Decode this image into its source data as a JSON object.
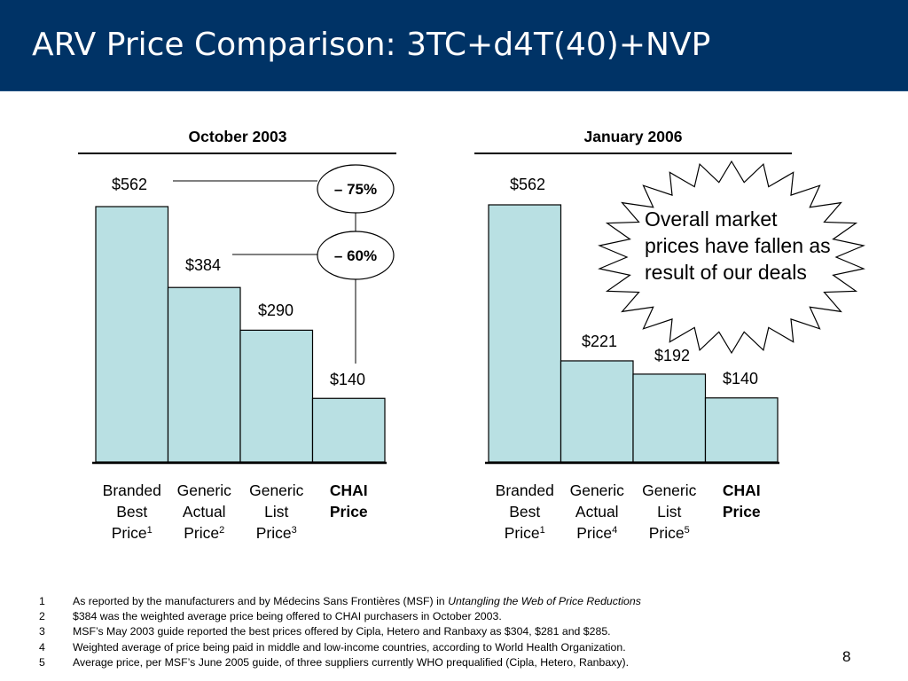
{
  "header": {
    "title": "ARV Price Comparison: 3TC+d4T(40)+NVP"
  },
  "colors": {
    "header_bg": "#003366",
    "bar_fill": "#b9e0e3",
    "bar_stroke": "#000000"
  },
  "chart_data": [
    {
      "type": "bar",
      "title": "October 2003",
      "categories": [
        [
          "Branded",
          "Best",
          "Price"
        ],
        [
          "Generic",
          "Actual",
          "Price"
        ],
        [
          "Generic",
          "List",
          "Price"
        ],
        [
          "CHAI",
          "Price"
        ]
      ],
      "superscripts": [
        "1",
        "2",
        "3",
        ""
      ],
      "bold_categories": [
        false,
        false,
        false,
        true
      ],
      "values": [
        562,
        384,
        290,
        140
      ],
      "value_labels": [
        "$562",
        "$384",
        "$290",
        "$140"
      ],
      "annotations": [
        "– 75%",
        "– 60%"
      ],
      "ylim": [
        0,
        562
      ]
    },
    {
      "type": "bar",
      "title": "January 2006",
      "categories": [
        [
          "Branded",
          "Best",
          "Price"
        ],
        [
          "Generic",
          "Actual",
          "Price"
        ],
        [
          "Generic",
          "List",
          "Price"
        ],
        [
          "CHAI",
          "Price"
        ]
      ],
      "superscripts": [
        "1",
        "4",
        "5",
        ""
      ],
      "bold_categories": [
        false,
        false,
        false,
        true
      ],
      "values": [
        562,
        221,
        192,
        140
      ],
      "value_labels": [
        "$562",
        "$221",
        "$192",
        "$140"
      ],
      "annotations": [],
      "ylim": [
        0,
        562
      ]
    }
  ],
  "callout": {
    "text": "Overall market prices have fallen as result of our deals"
  },
  "footnotes": [
    {
      "num": "1",
      "text": "As reported by the manufacturers and by Médecins Sans Frontières (MSF) in ",
      "emphasis": "Untangling the Web of Price Reductions"
    },
    {
      "num": "2",
      "text": "$384 was the weighted average price being offered to CHAI purchasers in October 2003.",
      "emphasis": ""
    },
    {
      "num": "3",
      "text": "MSF’s May 2003 guide reported the best prices offered by Cipla, Hetero and Ranbaxy as $304, $281 and $285.",
      "emphasis": ""
    },
    {
      "num": "4",
      "text": "Weighted average of price being paid in middle and low-income countries, according to World Health Organization.",
      "emphasis": ""
    },
    {
      "num": "5",
      "text": "Average price, per MSF’s June 2005 guide, of three suppliers currently WHO prequalified (Cipla, Hetero, Ranbaxy).",
      "emphasis": ""
    }
  ],
  "page_number": "8"
}
